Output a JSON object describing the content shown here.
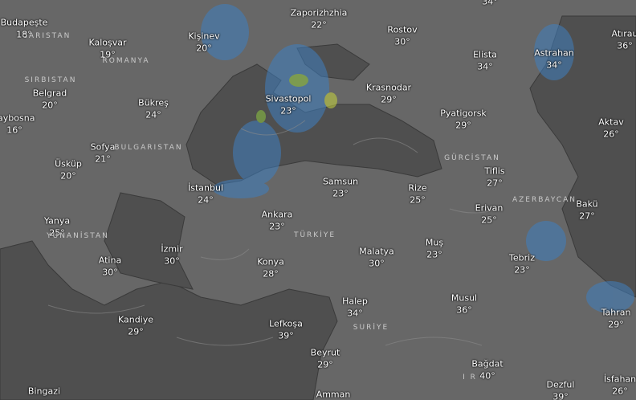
{
  "cities": [
    {
      "name": "Budapeşte",
      "temp": "18°"
    },
    {
      "name": "Kaloşvar",
      "temp": "19°"
    },
    {
      "name": "Kişinev",
      "temp": "20°"
    },
    {
      "name": "Zaporizhzhia",
      "temp": "22°"
    },
    {
      "name": "Rostov",
      "temp": "30°"
    },
    {
      "name": "Elista",
      "temp": "34°"
    },
    {
      "name": "Astrahan",
      "temp": "34°"
    },
    {
      "name": "Atırau",
      "temp": "36°"
    },
    {
      "name": "Belgrad",
      "temp": "20°"
    },
    {
      "name": "Bükreş",
      "temp": "24°"
    },
    {
      "name": "Sivastopol",
      "temp": "23°"
    },
    {
      "name": "Krasnodar",
      "temp": "29°"
    },
    {
      "name": "Pyatigorsk",
      "temp": "29°"
    },
    {
      "name": "Aktav",
      "temp": "26°"
    },
    {
      "name": "raybosna",
      "temp": "16°"
    },
    {
      "name": "Sofya",
      "temp": "21°"
    },
    {
      "name": "Üsküp",
      "temp": "20°"
    },
    {
      "name": "İstanbul",
      "temp": "24°"
    },
    {
      "name": "Samsun",
      "temp": "23°"
    },
    {
      "name": "Rize",
      "temp": "25°"
    },
    {
      "name": "Tiflis",
      "temp": "27°"
    },
    {
      "name": "Erivan",
      "temp": "25°"
    },
    {
      "name": "Bakü",
      "temp": "27°"
    },
    {
      "name": "Yanya",
      "temp": "25°"
    },
    {
      "name": "Ankara",
      "temp": "23°"
    },
    {
      "name": "İzmir",
      "temp": "30°"
    },
    {
      "name": "Atina",
      "temp": "30°"
    },
    {
      "name": "Konya",
      "temp": "28°"
    },
    {
      "name": "Malatya",
      "temp": "30°"
    },
    {
      "name": "Muş",
      "temp": "23°"
    },
    {
      "name": "Tebriz",
      "temp": "23°"
    },
    {
      "name": "Halep",
      "temp": "34°"
    },
    {
      "name": "Musul",
      "temp": "36°"
    },
    {
      "name": "Tahran",
      "temp": "29°"
    },
    {
      "name": "Kandiye",
      "temp": "29°"
    },
    {
      "name": "Lefkoşa",
      "temp": "39°"
    },
    {
      "name": "Beyrut",
      "temp": "29°"
    },
    {
      "name": "Bağdat",
      "temp": "40°"
    },
    {
      "name": "Dezful",
      "temp": "39°"
    },
    {
      "name": "İsfahan",
      "temp": "26°"
    },
    {
      "name": "Bingazi"
    },
    {
      "name": "Amman"
    }
  ],
  "partial_labels": [
    "34°"
  ],
  "countries": [
    "CARISTAN",
    "ROMANYA",
    "SIRBISTAN",
    "BULGARISTAN",
    "YUNANİSTAN",
    "TÜRKİYE",
    "GÜRCİSTAN",
    "AZERBAYCAN",
    "SURİYE",
    "I R"
  ]
}
